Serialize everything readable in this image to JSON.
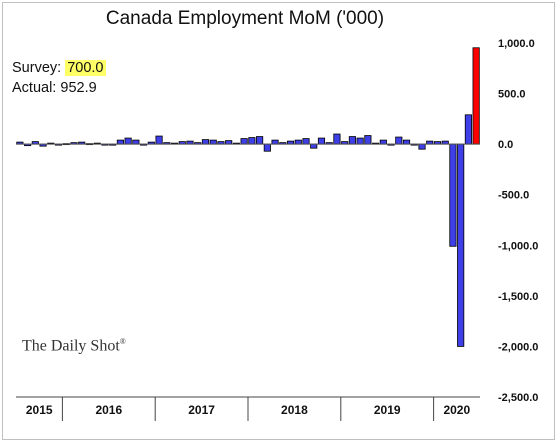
{
  "chart_data": {
    "type": "bar",
    "title": "Canada Employment MoM ('000)",
    "ylim": [
      -2500,
      1000
    ],
    "yticks": [
      "1,000.0",
      "500.0",
      "0.0",
      "-500.0",
      "-1,000.0",
      "-1,500.0",
      "-2,000.0",
      "-2,500.0"
    ],
    "ytick_values": [
      1000,
      500,
      0,
      -500,
      -1000,
      -1500,
      -2000,
      -2500
    ],
    "year_categories": [
      {
        "label": "2015",
        "months": 6
      },
      {
        "label": "2016",
        "months": 12
      },
      {
        "label": "2017",
        "months": 12
      },
      {
        "label": "2018",
        "months": 12
      },
      {
        "label": "2019",
        "months": 12
      },
      {
        "label": "2020",
        "months": 6
      }
    ],
    "series": [
      {
        "color": "#3f3fe8",
        "values": [
          20,
          -15,
          25,
          -20,
          10,
          -5,
          5,
          15,
          20,
          5,
          10,
          0,
          -10,
          40,
          60,
          40,
          0,
          20,
          80,
          15,
          10,
          25,
          30,
          15,
          45,
          40,
          25,
          35,
          10,
          55,
          65,
          75,
          -70,
          40,
          15,
          30,
          40,
          55,
          -40,
          60,
          15,
          100,
          25,
          75,
          60,
          85,
          10,
          40,
          -10,
          70,
          40,
          0,
          -50,
          30,
          25,
          30,
          -1010,
          -2000,
          290,
          null
        ]
      },
      {
        "color": "#ff0000",
        "values": [
          null,
          null,
          null,
          null,
          null,
          null,
          null,
          null,
          null,
          null,
          null,
          null,
          null,
          null,
          null,
          null,
          null,
          null,
          null,
          null,
          null,
          null,
          null,
          null,
          null,
          null,
          null,
          null,
          null,
          null,
          null,
          null,
          null,
          null,
          null,
          null,
          null,
          null,
          null,
          null,
          null,
          null,
          null,
          null,
          null,
          null,
          null,
          null,
          null,
          null,
          null,
          null,
          null,
          null,
          null,
          null,
          null,
          null,
          null,
          952.9
        ]
      }
    ]
  },
  "annotations": {
    "survey_label": "Survey:",
    "survey_value": "700.0",
    "actual_label": "Actual:",
    "actual_value": "952.9"
  },
  "watermark": "The Daily Shot",
  "watermark_mark": "®"
}
